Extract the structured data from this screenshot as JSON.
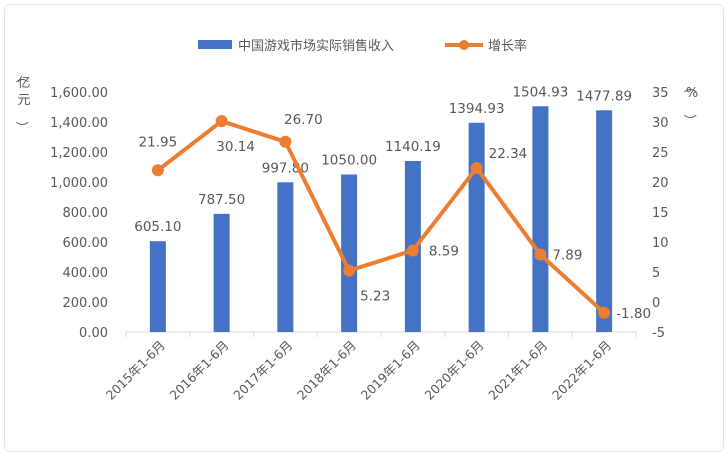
{
  "chart_data": {
    "type": "bar+line",
    "categories": [
      "2015年1-6月",
      "2016年1-6月",
      "2017年1-6月",
      "2018年1-6月",
      "2019年1-6月",
      "2020年1-6月",
      "2021年1-6月",
      "2022年1-6月"
    ],
    "series": [
      {
        "name": "中国游戏市场实际销售收入",
        "type": "bar",
        "axis": "left",
        "color": "#4472c4",
        "values": [
          605.1,
          787.5,
          997.8,
          1050.0,
          1140.19,
          1394.93,
          1504.93,
          1477.89
        ],
        "labels": [
          "605.10",
          "787.50",
          "997.80",
          "1050.00",
          "1140.19",
          "1394.93",
          "1504.93",
          "1477.89"
        ]
      },
      {
        "name": "增长率",
        "type": "line",
        "axis": "right",
        "color": "#ed7d31",
        "values": [
          21.95,
          30.14,
          26.7,
          5.23,
          8.59,
          22.34,
          7.89,
          -1.8
        ],
        "labels": [
          "21.95",
          "30.14",
          "26.70",
          "5.23",
          "8.59",
          "22.34",
          "7.89",
          "-1.80"
        ]
      }
    ],
    "left_axis": {
      "title": "（亿元）",
      "range": [
        0,
        1600
      ],
      "ticks": [
        "0.00",
        "200.00",
        "400.00",
        "600.00",
        "800.00",
        "1,000.00",
        "1,200.00",
        "1,400.00",
        "1,600.00"
      ]
    },
    "right_axis": {
      "title": "（%）",
      "range": [
        -5,
        35
      ],
      "ticks": [
        "-5",
        "0",
        "5",
        "10",
        "15",
        "20",
        "25",
        "30",
        "35"
      ]
    },
    "legend_placement": "top",
    "grid": false
  }
}
